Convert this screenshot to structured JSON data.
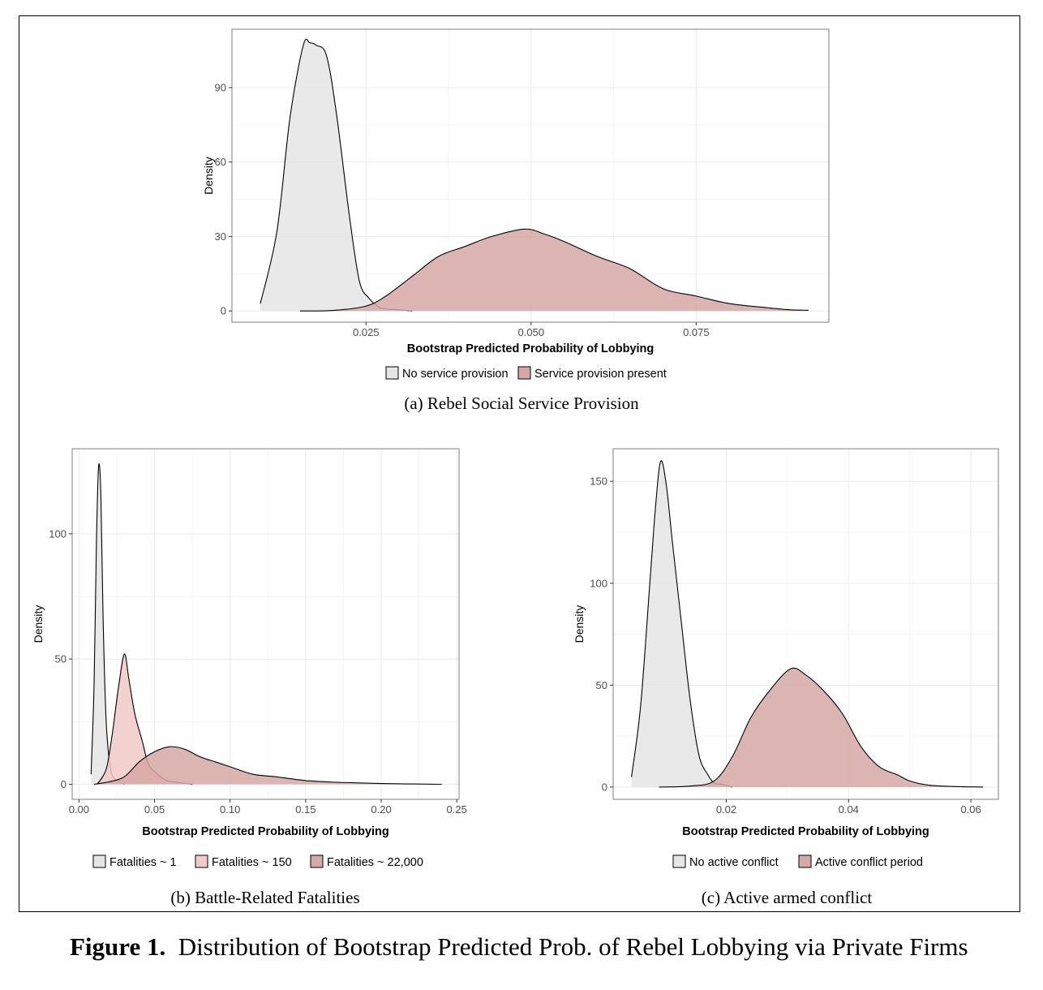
{
  "figure": {
    "label": "Figure 1.",
    "title": "Distribution of Bootstrap Predicted Prob. of Rebel Lobbying via Private Firms"
  },
  "colors": {
    "grey": "#e5e5e5",
    "pink": "#f1c9c7",
    "rose": "#d6a8a6",
    "grid": "#ebebeb",
    "axis": "#4d4d4d"
  },
  "chart_data": [
    {
      "id": "a",
      "type": "area",
      "caption": "(a) Rebel Social Service Provision",
      "xlabel": "Bootstrap Predicted Probability of Lobbying",
      "ylabel": "Density",
      "xlim": [
        0.0047,
        0.0951
      ],
      "ylim": [
        -4.5,
        113.5
      ],
      "xticks": [
        0.025,
        0.05,
        0.075
      ],
      "xtick_labels": [
        "0.025",
        "0.050",
        "0.075"
      ],
      "yticks": [
        0,
        30,
        60,
        90
      ],
      "ytick_labels": [
        "0",
        "30",
        "60",
        "90"
      ],
      "legend_position": "bottom",
      "series": [
        {
          "name": "No service provision",
          "fill": "#e5e5e5",
          "points": [
            [
              0.009,
              3
            ],
            [
              0.0115,
              32
            ],
            [
              0.0135,
              78
            ],
            [
              0.0155,
              107
            ],
            [
              0.0165,
              108
            ],
            [
              0.0175,
              107
            ],
            [
              0.019,
              103
            ],
            [
              0.0205,
              80
            ],
            [
              0.0225,
              38
            ],
            [
              0.024,
              12
            ],
            [
              0.0255,
              5
            ],
            [
              0.027,
              1.5
            ],
            [
              0.028,
              0.8
            ],
            [
              0.0295,
              0.6
            ],
            [
              0.031,
              0.2
            ],
            [
              0.032,
              0
            ]
          ]
        },
        {
          "name": "Service provision present",
          "fill": "#d6a8a6",
          "points": [
            [
              0.015,
              0
            ],
            [
              0.02,
              0.2
            ],
            [
              0.025,
              2
            ],
            [
              0.028,
              6
            ],
            [
              0.032,
              14
            ],
            [
              0.036,
              22
            ],
            [
              0.04,
              26
            ],
            [
              0.044,
              30
            ],
            [
              0.049,
              33
            ],
            [
              0.052,
              31
            ],
            [
              0.055,
              28
            ],
            [
              0.06,
              22
            ],
            [
              0.065,
              17
            ],
            [
              0.07,
              9
            ],
            [
              0.075,
              6
            ],
            [
              0.08,
              3
            ],
            [
              0.085,
              1.5
            ],
            [
              0.089,
              0.5
            ],
            [
              0.092,
              0.3
            ]
          ]
        }
      ]
    },
    {
      "id": "b",
      "type": "area",
      "caption": "(b) Battle-Related Fatalities",
      "xlabel": "Bootstrap Predicted Probability of Lobbying",
      "ylabel": "Density",
      "xlim": [
        -0.0045,
        0.2515
      ],
      "ylim": [
        -6,
        134
      ],
      "xticks": [
        0,
        0.05,
        0.1,
        0.15,
        0.2,
        0.25
      ],
      "xtick_labels": [
        "0.00",
        "0.05",
        "0.10",
        "0.15",
        "0.20",
        "0.25"
      ],
      "yticks": [
        0,
        50,
        100
      ],
      "ytick_labels": [
        "0",
        "50",
        "100"
      ],
      "legend_position": "bottom",
      "series": [
        {
          "name": "Fatalities ~ 1",
          "fill": "#e5e5e5",
          "points": [
            [
              0.008,
              4
            ],
            [
              0.01,
              40
            ],
            [
              0.0115,
              95
            ],
            [
              0.013,
              127
            ],
            [
              0.0145,
              115
            ],
            [
              0.016,
              65
            ],
            [
              0.018,
              25
            ],
            [
              0.021,
              6
            ],
            [
              0.025,
              1.5
            ],
            [
              0.03,
              0
            ]
          ]
        },
        {
          "name": "Fatalities ~ 150",
          "fill": "#f1c9c7",
          "points": [
            [
              0.012,
              0
            ],
            [
              0.018,
              6
            ],
            [
              0.022,
              20
            ],
            [
              0.026,
              38
            ],
            [
              0.03,
              52
            ],
            [
              0.033,
              42
            ],
            [
              0.037,
              28
            ],
            [
              0.042,
              17
            ],
            [
              0.046,
              8
            ],
            [
              0.052,
              4
            ],
            [
              0.058,
              1.5
            ],
            [
              0.065,
              0.8
            ],
            [
              0.075,
              0
            ]
          ]
        },
        {
          "name": "Fatalities ~ 22,000",
          "fill": "#d6a8a6",
          "points": [
            [
              0.01,
              0
            ],
            [
              0.02,
              1
            ],
            [
              0.03,
              3
            ],
            [
              0.04,
              9
            ],
            [
              0.05,
              13
            ],
            [
              0.06,
              15
            ],
            [
              0.07,
              14
            ],
            [
              0.08,
              11
            ],
            [
              0.09,
              9
            ],
            [
              0.1,
              7
            ],
            [
              0.115,
              4
            ],
            [
              0.13,
              3
            ],
            [
              0.15,
              1.5
            ],
            [
              0.17,
              0.8
            ],
            [
              0.2,
              0.3
            ],
            [
              0.24,
              0
            ]
          ]
        }
      ]
    },
    {
      "id": "c",
      "type": "area",
      "caption": "(c) Active armed conflict",
      "xlabel": "Bootstrap Predicted Probability of Lobbying",
      "ylabel": "Density",
      "xlim": [
        0.0015,
        0.0645
      ],
      "ylim": [
        -6,
        166
      ],
      "xticks": [
        0.02,
        0.04,
        0.06
      ],
      "xtick_labels": [
        "0.02",
        "0.04",
        "0.06"
      ],
      "yticks": [
        0,
        50,
        100,
        150
      ],
      "ytick_labels": [
        "0",
        "50",
        "100",
        "150"
      ],
      "legend_position": "bottom",
      "series": [
        {
          "name": "No active conflict",
          "fill": "#e5e5e5",
          "points": [
            [
              0.0045,
              5
            ],
            [
              0.006,
              40
            ],
            [
              0.0075,
              100
            ],
            [
              0.0085,
              140
            ],
            [
              0.0093,
              160
            ],
            [
              0.0102,
              148
            ],
            [
              0.0112,
              120
            ],
            [
              0.0125,
              85
            ],
            [
              0.014,
              45
            ],
            [
              0.0155,
              16
            ],
            [
              0.017,
              6
            ],
            [
              0.018,
              2
            ],
            [
              0.019,
              1.5
            ],
            [
              0.02,
              0.8
            ],
            [
              0.021,
              0
            ]
          ]
        },
        {
          "name": "Active conflict period",
          "fill": "#d6a8a6",
          "points": [
            [
              0.009,
              0
            ],
            [
              0.014,
              0.5
            ],
            [
              0.018,
              3
            ],
            [
              0.021,
              15
            ],
            [
              0.024,
              34
            ],
            [
              0.027,
              47
            ],
            [
              0.0305,
              58
            ],
            [
              0.033,
              55
            ],
            [
              0.036,
              47
            ],
            [
              0.039,
              36
            ],
            [
              0.042,
              20
            ],
            [
              0.045,
              10
            ],
            [
              0.048,
              6
            ],
            [
              0.05,
              3
            ],
            [
              0.053,
              1
            ],
            [
              0.057,
              0.3
            ],
            [
              0.062,
              0
            ]
          ]
        }
      ]
    }
  ]
}
